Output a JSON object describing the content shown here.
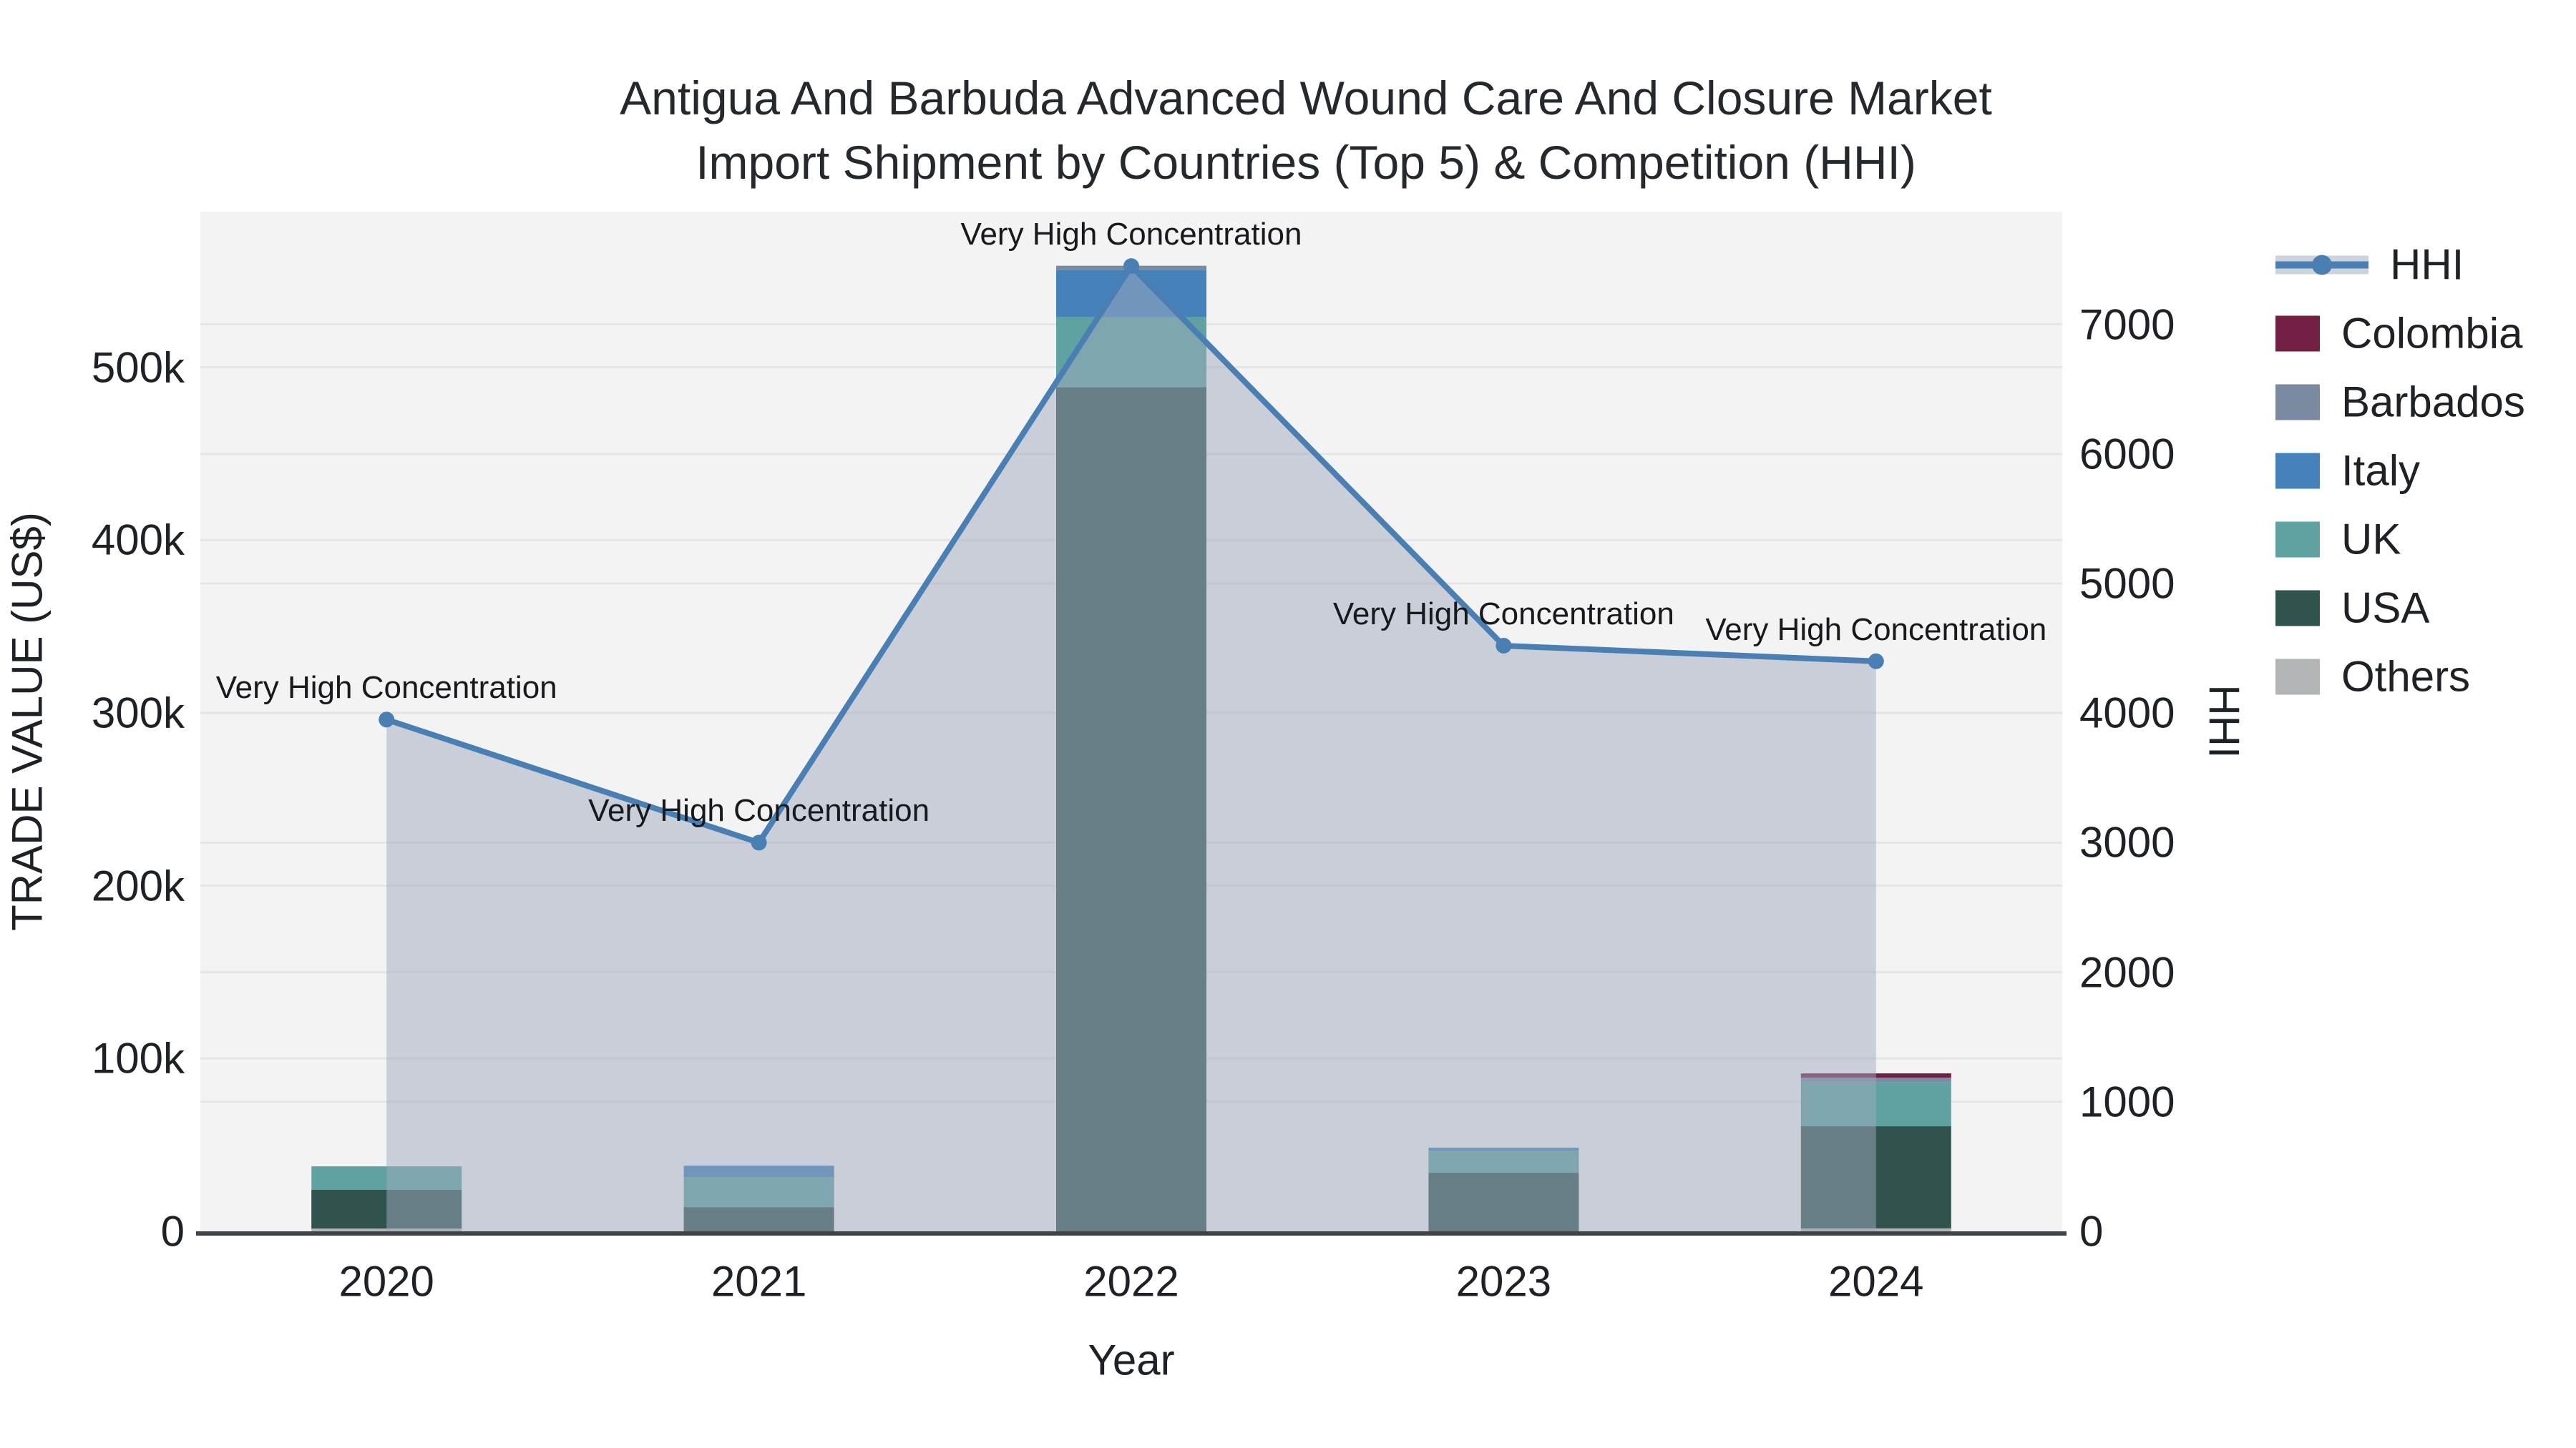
{
  "chart_data": {
    "type": "bar",
    "subtype": "stacked-bar-with-dual-axis-line-area",
    "title": "Antigua And Barbuda Advanced Wound Care And Closure Market Import Shipment by Countries (Top 5) & Competition (HHI)",
    "title_lines": [
      "Antigua And Barbuda Advanced Wound Care And Closure Market",
      "Import Shipment by Countries (Top 5) & Competition (HHI)"
    ],
    "categories": [
      "2020",
      "2021",
      "2022",
      "2023",
      "2024"
    ],
    "series": [
      {
        "name": "Colombia",
        "color": "#721f44",
        "values": [
          0,
          0,
          0,
          0,
          2500
        ]
      },
      {
        "name": "Barbados",
        "color": "#7b8aa0",
        "values": [
          0,
          0,
          2500,
          0,
          2500
        ]
      },
      {
        "name": "Italy",
        "color": "#4581ba",
        "values": [
          0,
          6600,
          27300,
          1700,
          0
        ]
      },
      {
        "name": "UK",
        "color": "#5fa2a1",
        "values": [
          13600,
          17400,
          40500,
          12800,
          25600
        ]
      },
      {
        "name": "USA",
        "color": "#30534e",
        "values": [
          22400,
          14000,
          488400,
          33900,
          59100
        ]
      },
      {
        "name": "Others",
        "color": "#b2b5b6",
        "values": [
          1600,
          0,
          0,
          0,
          1700
        ]
      }
    ],
    "stack_order_bottom_to_top": [
      "Others",
      "USA",
      "UK",
      "Italy",
      "Barbados",
      "Colombia"
    ],
    "line_series": {
      "name": "HHI",
      "axis": "right",
      "color": "#4a7fb3",
      "fill_color": "rgba(160,169,189,0.5)",
      "values": [
        3950,
        3000,
        7450,
        4520,
        4400
      ]
    },
    "annotations": [
      "Very High Concentration",
      "Very High Concentration",
      "Very High Concentration",
      "Very High Concentration",
      "Very High Concentration"
    ],
    "left_axis": {
      "title": "TRADE VALUE (US$)",
      "tick_labels": [
        "0",
        "100k",
        "200k",
        "300k",
        "400k",
        "500k"
      ],
      "tick_values": [
        0,
        100000,
        200000,
        300000,
        400000,
        500000
      ],
      "range": [
        0,
        590000
      ]
    },
    "right_axis": {
      "title": "HHI",
      "tick_labels": [
        "0",
        "1000",
        "2000",
        "3000",
        "4000",
        "5000",
        "6000",
        "7000"
      ],
      "tick_values": [
        0,
        1000,
        2000,
        3000,
        4000,
        5000,
        6000,
        7000
      ],
      "range": [
        0,
        7870
      ]
    },
    "x_axis": {
      "title": "Year",
      "tick_labels": [
        "2020",
        "2021",
        "2022",
        "2023",
        "2024"
      ]
    },
    "legend": {
      "entries": [
        "HHI",
        "Colombia",
        "Barbados",
        "Italy",
        "UK",
        "USA",
        "Others"
      ],
      "position": "right"
    },
    "plot_style": {
      "plot_bg": "#f3f3f4",
      "grid_color": "#e4e5e7",
      "axis_line_color": "#3f4347",
      "grid_on": true
    }
  }
}
